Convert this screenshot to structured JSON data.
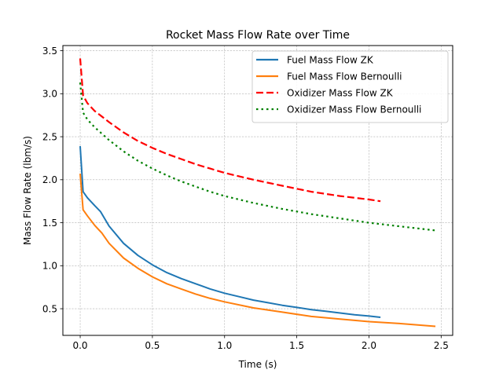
{
  "chart_data": {
    "type": "line",
    "title": "Rocket Mass Flow Rate over Time",
    "xlabel": "Time (s)",
    "ylabel": "Mass Flow Rate (lbm/s)",
    "xlim": [
      -0.12,
      2.58
    ],
    "ylim": [
      0.19,
      3.56
    ],
    "xticks": [
      0.0,
      0.5,
      1.0,
      1.5,
      2.0,
      2.5
    ],
    "xtick_labels": [
      "0.0",
      "0.5",
      "1.0",
      "1.5",
      "2.0",
      "2.5"
    ],
    "yticks": [
      0.5,
      1.0,
      1.5,
      2.0,
      2.5,
      3.0,
      3.5
    ],
    "ytick_labels": [
      "0.5",
      "1.0",
      "1.5",
      "2.0",
      "2.5",
      "3.0",
      "3.5"
    ],
    "grid": true,
    "legend_position": "upper-right",
    "series": [
      {
        "name": "Fuel Mass Flow ZK",
        "color": "#1f77b4",
        "style": "solid",
        "x": [
          0.0,
          0.02,
          0.05,
          0.1,
          0.14,
          0.2,
          0.3,
          0.4,
          0.5,
          0.6,
          0.7,
          0.8,
          0.9,
          1.0,
          1.1,
          1.2,
          1.3,
          1.4,
          1.5,
          1.6,
          1.7,
          1.8,
          1.9,
          2.0,
          2.08
        ],
        "y": [
          2.39,
          1.86,
          1.79,
          1.7,
          1.63,
          1.46,
          1.26,
          1.12,
          1.01,
          0.92,
          0.85,
          0.79,
          0.73,
          0.68,
          0.64,
          0.6,
          0.57,
          0.54,
          0.515,
          0.49,
          0.47,
          0.45,
          0.43,
          0.415,
          0.4
        ]
      },
      {
        "name": "Fuel Mass Flow Bernoulli",
        "color": "#ff7f0e",
        "style": "solid",
        "x": [
          0.0,
          0.02,
          0.05,
          0.1,
          0.15,
          0.2,
          0.3,
          0.4,
          0.5,
          0.6,
          0.7,
          0.8,
          0.9,
          1.0,
          1.2,
          1.4,
          1.6,
          1.8,
          2.0,
          2.2,
          2.46
        ],
        "y": [
          2.07,
          1.65,
          1.58,
          1.47,
          1.38,
          1.26,
          1.09,
          0.97,
          0.87,
          0.79,
          0.73,
          0.67,
          0.62,
          0.58,
          0.51,
          0.46,
          0.41,
          0.38,
          0.35,
          0.33,
          0.295
        ]
      },
      {
        "name": "Oxidizer Mass Flow ZK",
        "color": "#ff0000",
        "style": "dashed",
        "x": [
          0.0,
          0.02,
          0.05,
          0.1,
          0.2,
          0.3,
          0.4,
          0.5,
          0.6,
          0.7,
          0.8,
          0.9,
          1.0,
          1.2,
          1.4,
          1.6,
          1.8,
          2.0,
          2.08
        ],
        "y": [
          3.41,
          2.98,
          2.89,
          2.8,
          2.67,
          2.55,
          2.45,
          2.37,
          2.3,
          2.24,
          2.18,
          2.13,
          2.08,
          2.0,
          1.93,
          1.86,
          1.81,
          1.77,
          1.75
        ]
      },
      {
        "name": "Oxidizer Mass Flow Bernoulli",
        "color": "#008000",
        "style": "dotted",
        "x": [
          0.0,
          0.02,
          0.05,
          0.1,
          0.2,
          0.3,
          0.4,
          0.5,
          0.6,
          0.7,
          0.8,
          0.9,
          1.0,
          1.2,
          1.4,
          1.6,
          1.8,
          2.0,
          2.2,
          2.46
        ],
        "y": [
          3.13,
          2.78,
          2.7,
          2.61,
          2.46,
          2.33,
          2.22,
          2.13,
          2.05,
          1.98,
          1.92,
          1.86,
          1.81,
          1.73,
          1.66,
          1.6,
          1.55,
          1.5,
          1.46,
          1.41
        ]
      }
    ]
  }
}
